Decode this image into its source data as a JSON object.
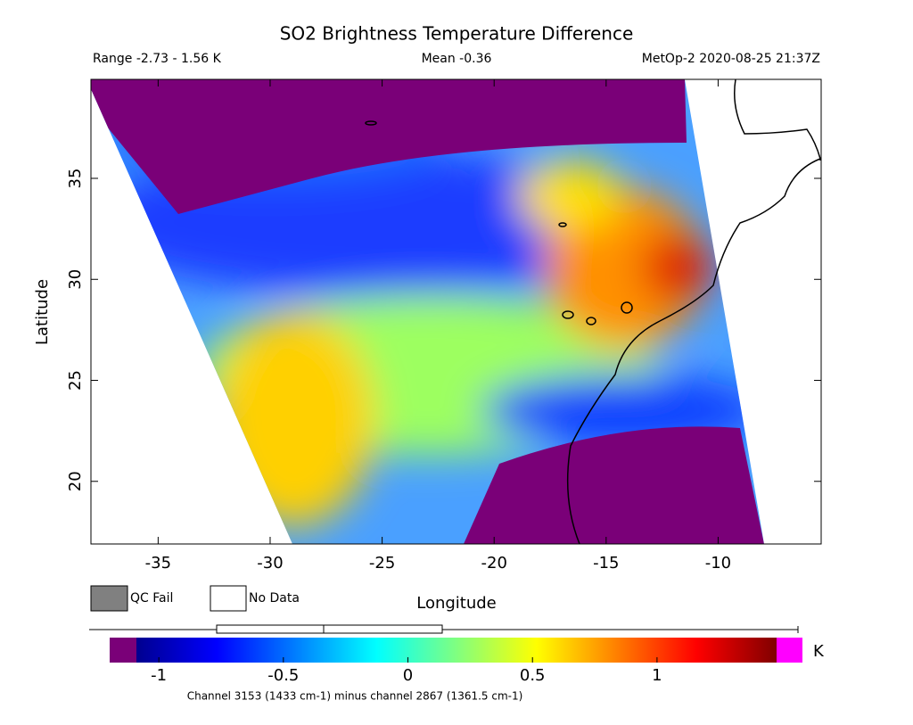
{
  "header": {
    "title": "SO2 Brightness Temperature Difference",
    "range": "Range -2.73 - 1.56 K",
    "mean": "Mean -0.36",
    "source": "MetOp-2 2020-08-25 21:37Z"
  },
  "map": {
    "xlabel": "Longitude",
    "ylabel": "Latitude",
    "xlim": [
      -38,
      -5.4
    ],
    "ylim": [
      16.9,
      39.9
    ],
    "xticks": [
      -35,
      -30,
      -25,
      -20,
      -15,
      -10
    ],
    "yticks": [
      20,
      25,
      30,
      35
    ]
  },
  "legend": {
    "qc_fail": "QC Fail",
    "no_data": "No Data"
  },
  "colorbar": {
    "lim": [
      -1.09,
      1.48
    ],
    "ticks": [
      -1,
      -0.5,
      0,
      0.5,
      1
    ],
    "unit": "K",
    "caption": "Channel 3153 (1433 cm-1) minus channel 2867 (1361.5 cm-1)"
  }
}
